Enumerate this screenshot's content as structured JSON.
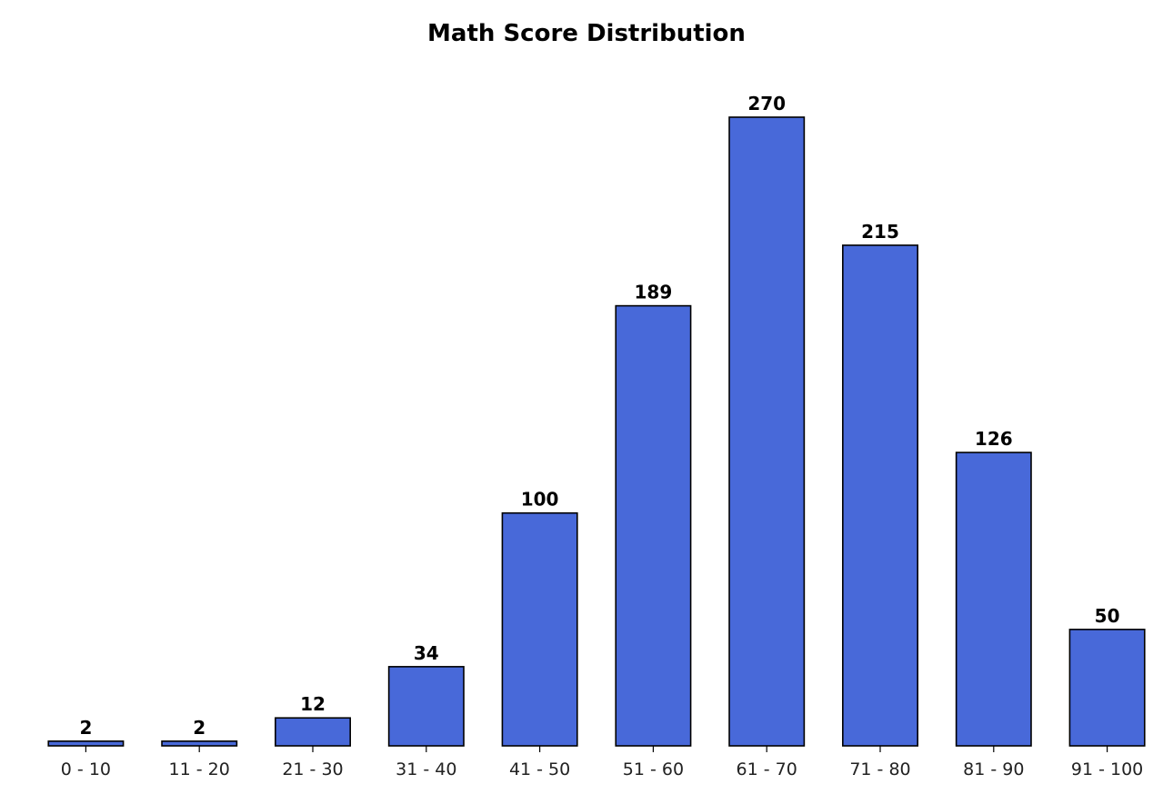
{
  "chart_data": {
    "type": "bar",
    "title": "Math Score Distribution",
    "xlabel": "",
    "ylabel": "",
    "categories": [
      "0 - 10",
      "11 - 20",
      "21 - 30",
      "31 - 40",
      "41 - 50",
      "51 - 60",
      "61 - 70",
      "71 - 80",
      "81 - 90",
      "91 - 100"
    ],
    "values": [
      2,
      2,
      12,
      34,
      100,
      189,
      270,
      215,
      126,
      50
    ],
    "ylim": [
      0,
      270
    ],
    "grid": false,
    "legend": "none",
    "bar_color": "#4869d9",
    "bar_edge_color": "#000000"
  }
}
